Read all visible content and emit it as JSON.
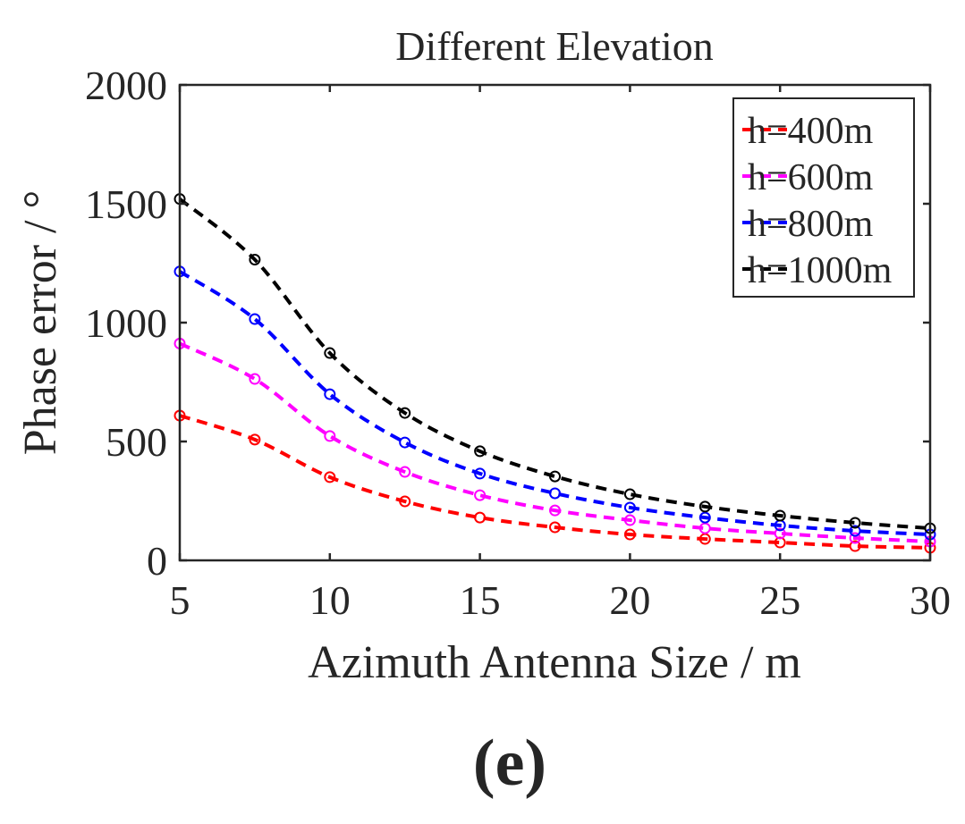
{
  "chart_data": {
    "type": "line",
    "title": "Different Elevation",
    "xlabel": "Azimuth Antenna Size / m",
    "ylabel": "Phase error / °",
    "xlim": [
      5,
      30
    ],
    "ylim": [
      0,
      2000
    ],
    "xticks": [
      5,
      10,
      15,
      20,
      25,
      30
    ],
    "yticks": [
      0,
      500,
      1000,
      1500,
      2000
    ],
    "grid": false,
    "legend_position": "top-right",
    "x": [
      5,
      7.5,
      10,
      12.5,
      15,
      17.5,
      20,
      22.5,
      25,
      27.5,
      30
    ],
    "series": [
      {
        "name": "h=400m",
        "color": "#ff0000",
        "values": [
          609,
          508,
          350,
          248,
          180,
          139,
          109,
          90,
          75,
          60,
          53
        ]
      },
      {
        "name": "h=600m",
        "color": "#ff00ff",
        "values": [
          912,
          763,
          523,
          372,
          274,
          210,
          169,
          135,
          113,
          94,
          79
        ]
      },
      {
        "name": "h=800m",
        "color": "#0000ff",
        "values": [
          1215,
          1015,
          699,
          496,
          365,
          282,
          222,
          180,
          147,
          124,
          109
        ]
      },
      {
        "name": "h=1000m",
        "color": "#000000",
        "values": [
          1520,
          1265,
          872,
          620,
          459,
          353,
          278,
          226,
          188,
          158,
          135
        ]
      }
    ]
  },
  "caption": "(e)"
}
